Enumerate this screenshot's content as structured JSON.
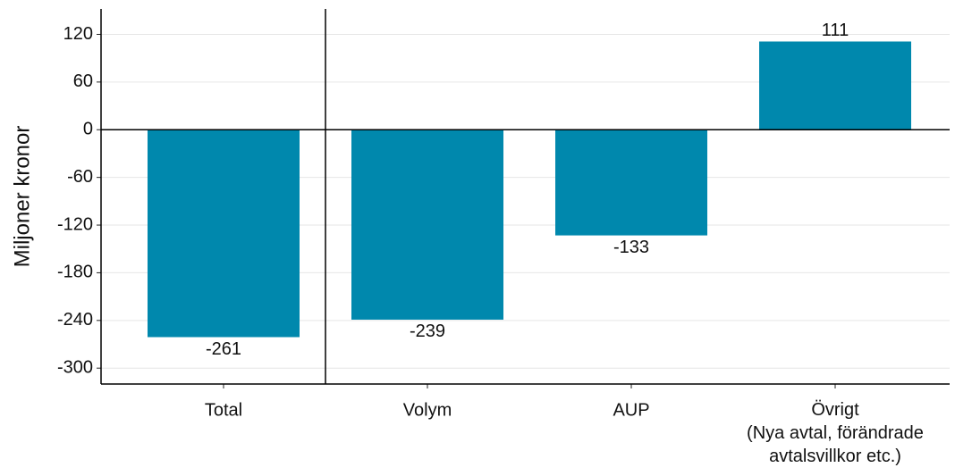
{
  "chart_data": {
    "type": "bar",
    "y_label": "Miljoner kronor",
    "categories": [
      "Total",
      "Volym",
      "AUP",
      "Övrigt\n(Nya avtal, förändrade\navtalsvillkor etc.)"
    ],
    "values": [
      -261,
      -239,
      -133,
      111
    ],
    "color": "#0088ad",
    "ylim": [
      -320,
      152
    ],
    "yticks": [
      -300,
      -240,
      -180,
      -120,
      -60,
      0,
      60,
      120
    ],
    "grid": true
  }
}
